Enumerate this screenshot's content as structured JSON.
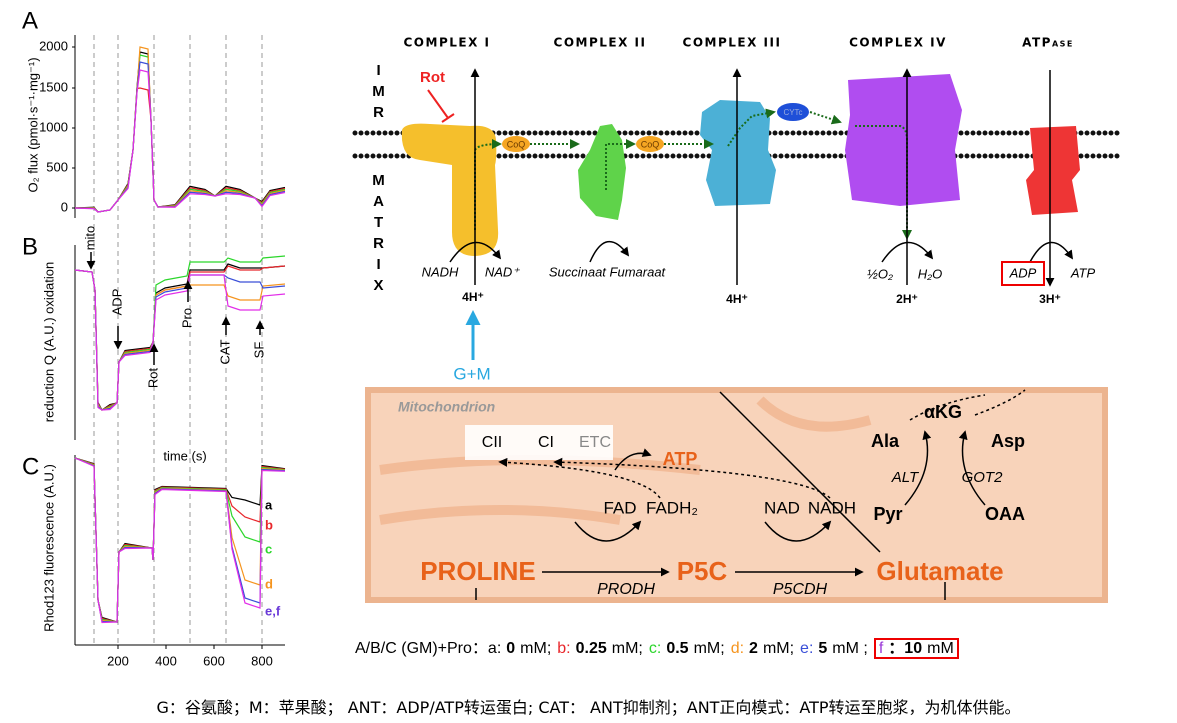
{
  "panel_a": {
    "label": "A",
    "y_label": "O₂ flux (pmol·s⁻¹·mg⁻¹)",
    "y_ticks": [
      "0",
      "500",
      "1000",
      "1500",
      "2000"
    ]
  },
  "panel_b": {
    "label": "B",
    "y_label": "reduction Q (A.U.) oxidation",
    "annotations": [
      "mito",
      "ADP",
      "Rot",
      "Pro",
      "CAT",
      "SF"
    ]
  },
  "panel_c": {
    "label": "C",
    "y_label": "Rhod123 fluorescence (A.U.)",
    "x_label": "time (s)",
    "x_ticks": [
      "200",
      "400",
      "600",
      "800"
    ],
    "curve_labels": [
      "a",
      "b",
      "c",
      "d",
      "e,f"
    ]
  },
  "membrane": {
    "complexes": [
      "COMPLEX I",
      "COMPLEX II",
      "COMPLEX III",
      "COMPLEX IV",
      "ATPase"
    ],
    "imr": "IMR",
    "matrix": "MATRIX",
    "inhibitor": "Rot",
    "carriers": [
      "CoQ",
      "CoQ",
      "CYTc"
    ],
    "nadh": "NADH",
    "nad": "NAD⁺",
    "succinate": "Succinaat Fumaraat",
    "o2": "½O₂",
    "h2o": "H₂O",
    "adp": "ADP",
    "atp": "ATP",
    "protons": [
      "4H⁺",
      "4H⁺",
      "2H⁺",
      "3H⁺"
    ],
    "substrate": "G+M"
  },
  "pathway": {
    "compartment": "Mitochondrion",
    "etc": [
      "CII",
      "CI",
      "ETC"
    ],
    "atp": "ATP",
    "akg": "αKG",
    "ala": "Ala",
    "asp": "Asp",
    "alt": "ALT",
    "got2": "GOT2",
    "pyr": "Pyr",
    "oaa": "OAA",
    "fad": "FAD",
    "fadh2": "FADH₂",
    "nad": "NAD",
    "nadh": "NADH",
    "proline": "PROLINE",
    "prodh": "PRODH",
    "p5c": "P5C",
    "p5cdh": "P5CDH",
    "glutamate": "Glutamate"
  },
  "legend": {
    "prefix": "A/B/C (GM)+Pro：",
    "items": [
      {
        "key": "a:",
        "amount": "0",
        "unit": "mM;"
      },
      {
        "key": "b:",
        "amount": "0.25",
        "unit": "mM;"
      },
      {
        "key": "c:",
        "amount": "0.5",
        "unit": "mM;"
      },
      {
        "key": "d:",
        "amount": "2",
        "unit": "mM;"
      },
      {
        "key": "e:",
        "amount": "5",
        "unit": "mM ;"
      },
      {
        "key": "f",
        "amount": "：10",
        "unit": "mM"
      }
    ]
  },
  "footer": "G：谷氨酸；M：苹果酸； ANT：ADP/ATP转运蛋白; CAT： ANT抑制剂；ANT正向模式：ATP转运至胞浆，为机体供能。"
}
